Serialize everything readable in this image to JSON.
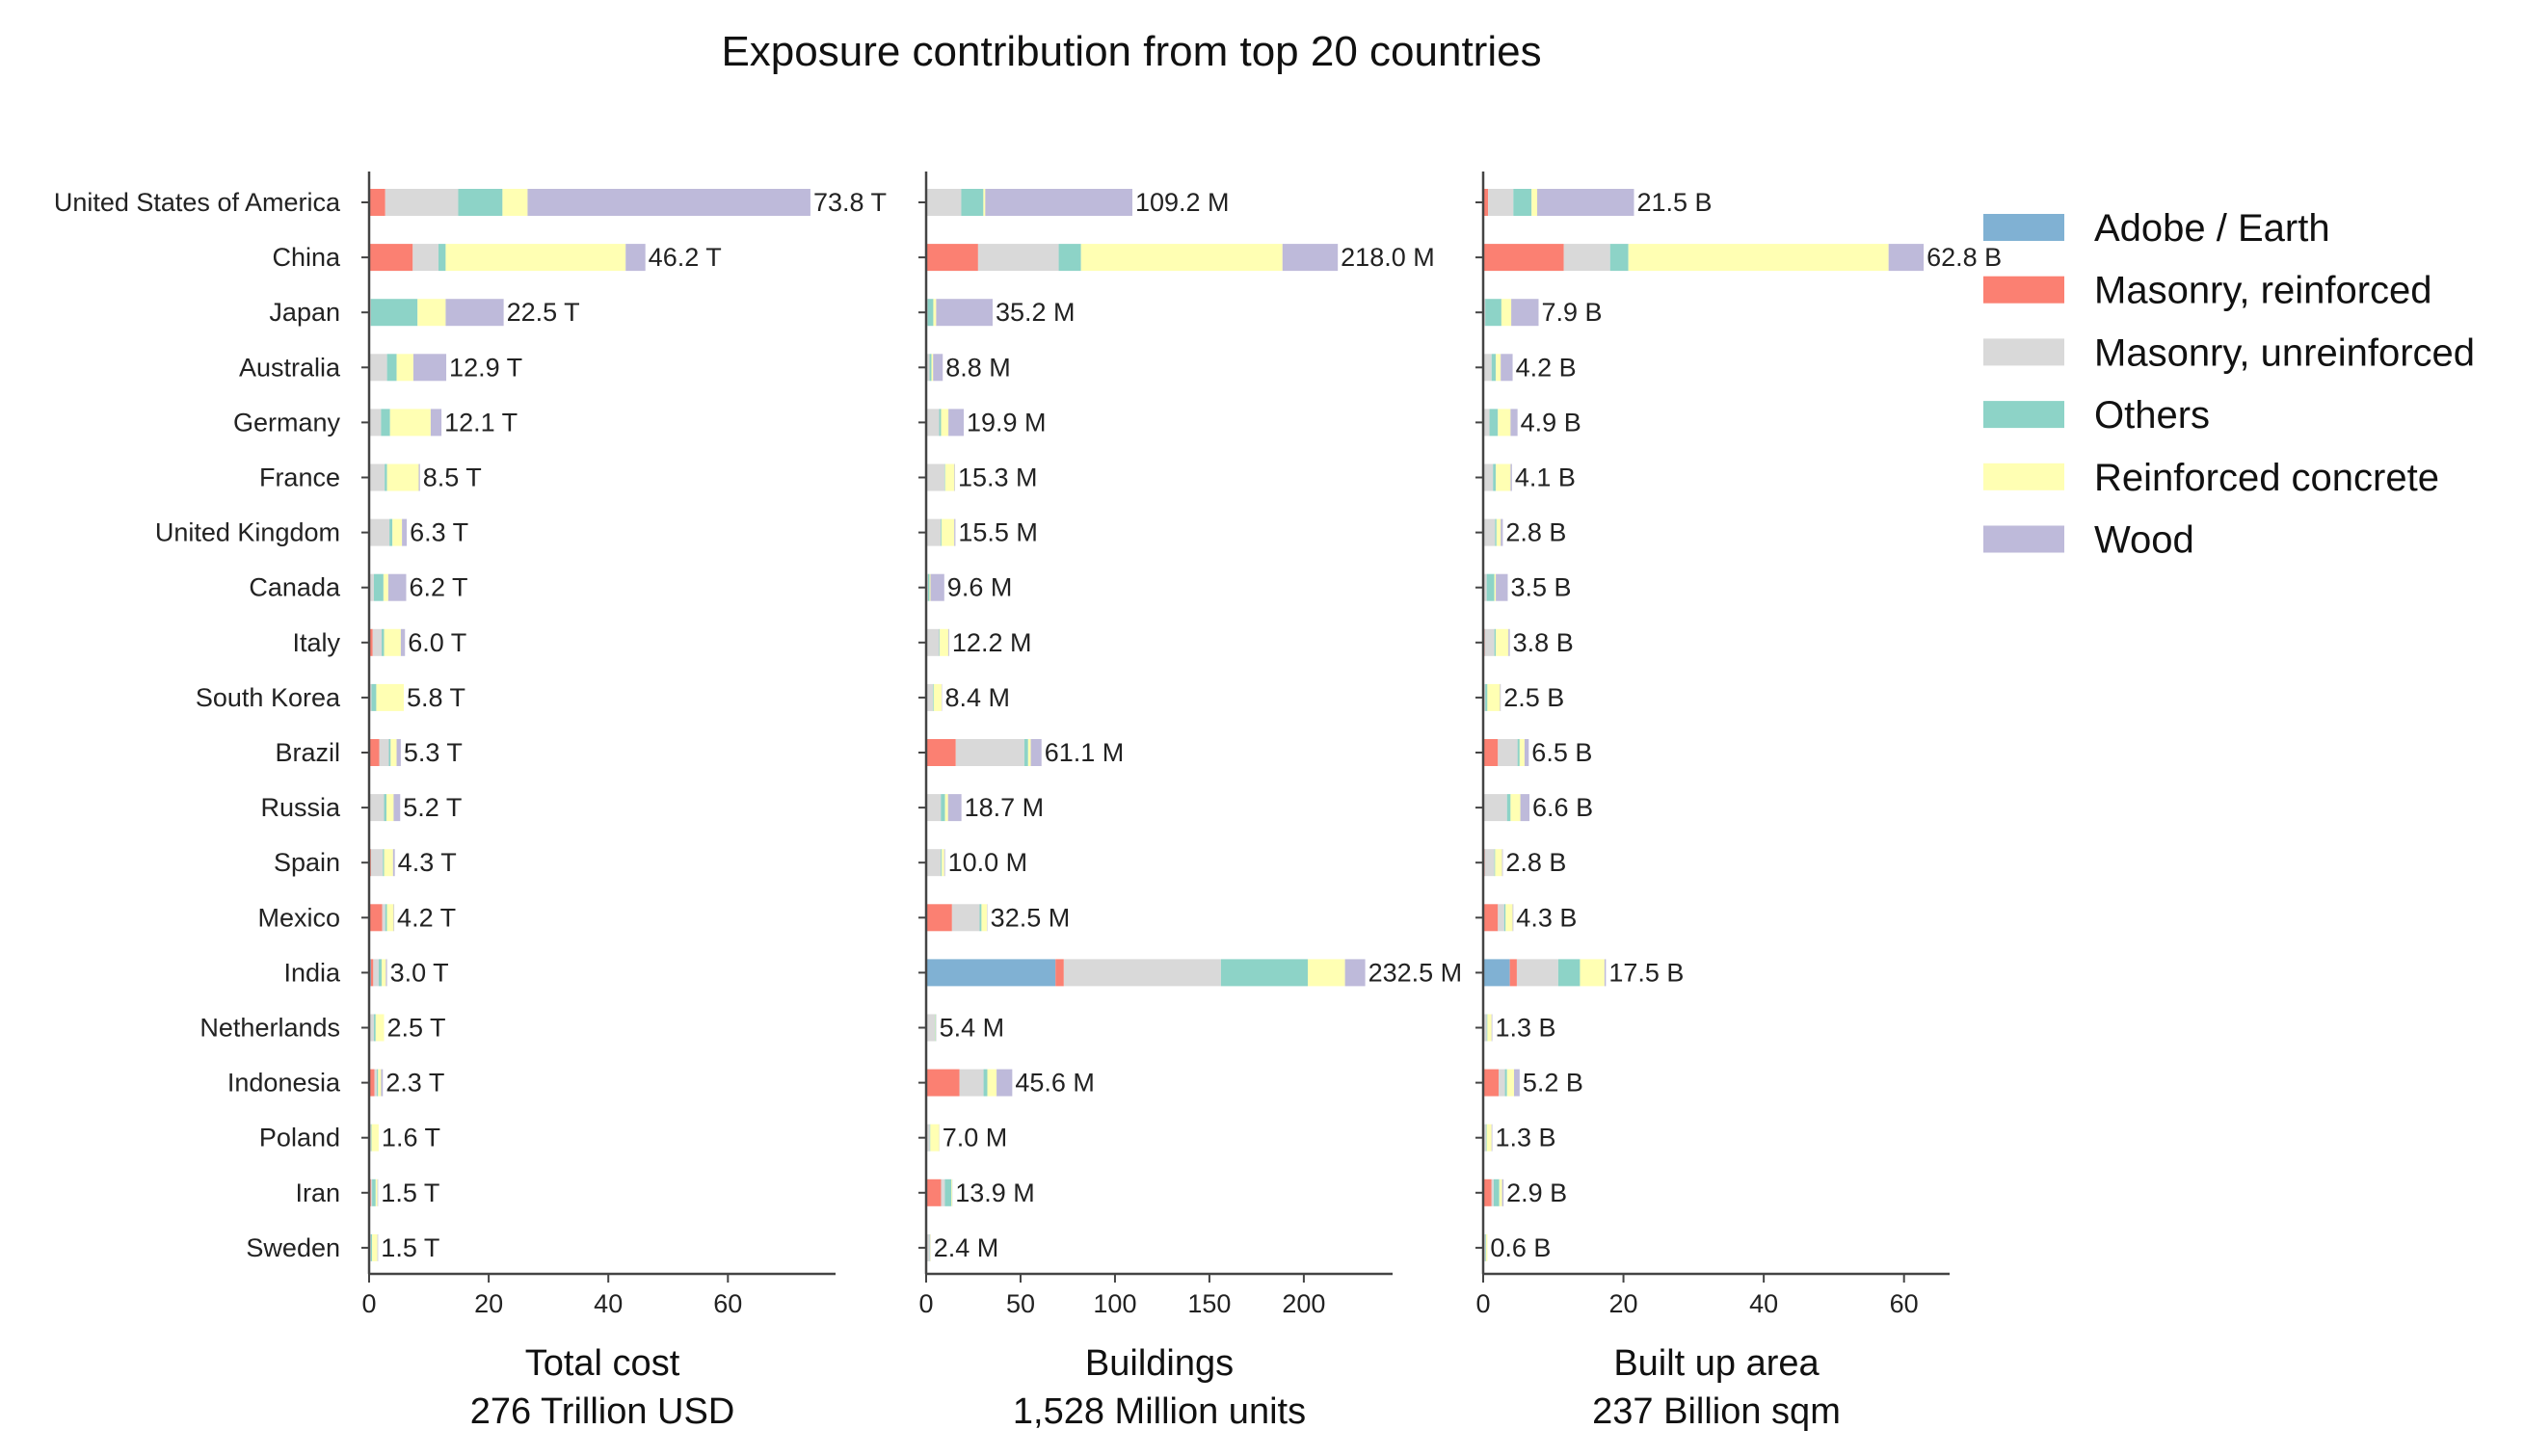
{
  "chart_data": {
    "type": "bar",
    "title": "Exposure contribution from top 20 countries",
    "categories": [
      "United States of America",
      "China",
      "Japan",
      "Australia",
      "Germany",
      "France",
      "United Kingdom",
      "Canada",
      "Italy",
      "South Korea",
      "Brazil",
      "Russia",
      "Spain",
      "Mexico",
      "India",
      "Netherlands",
      "Indonesia",
      "Poland",
      "Iran",
      "Sweden"
    ],
    "legend": {
      "placement": "top-right",
      "entries": [
        {
          "name": "Adobe / Earth",
          "color": "#80b1d3"
        },
        {
          "name": "Masonry, reinforced",
          "color": "#fb8072"
        },
        {
          "name": "Masonry, unreinforced",
          "color": "#d9d9d9"
        },
        {
          "name": "Others",
          "color": "#8dd3c7"
        },
        {
          "name": "Reinforced concrete",
          "color": "#ffffb3"
        },
        {
          "name": "Wood",
          "color": "#bebada"
        }
      ]
    },
    "panels": [
      {
        "xlabel": "Total cost",
        "xlabel2": "276 Trillion USD",
        "xlim": [
          0,
          78
        ],
        "xticks": [
          0,
          20,
          40,
          60
        ],
        "totals_labels": [
          "73.8 T",
          "46.2 T",
          "22.5 T",
          "12.9 T",
          "12.1 T",
          "8.5 T",
          "6.3 T",
          "6.2 T",
          "6.0 T",
          "5.8 T",
          "5.3 T",
          "5.2 T",
          "4.3 T",
          "4.2 T",
          "3.0 T",
          "2.5 T",
          "2.3 T",
          "1.6 T",
          "1.5 T",
          "1.5 T"
        ],
        "series": [
          {
            "name": "Adobe / Earth",
            "values": [
              0,
              0,
              0,
              0,
              0,
              0,
              0,
              0,
              0,
              0,
              0,
              0,
              0,
              0,
              0.3,
              0,
              0,
              0,
              0,
              0
            ]
          },
          {
            "name": "Masonry, reinforced",
            "values": [
              2.7,
              7.3,
              0,
              0,
              0,
              0,
              0,
              0,
              0.6,
              0,
              1.7,
              0,
              0.3,
              2.2,
              0.4,
              0,
              0.9,
              0,
              0.3,
              0
            ]
          },
          {
            "name": "Masonry, unreinforced",
            "values": [
              12.2,
              4.3,
              0.3,
              3.0,
              2.0,
              2.6,
              3.4,
              0.8,
              1.5,
              0.4,
              1.6,
              2.5,
              2.0,
              0.5,
              0.9,
              0.8,
              0.4,
              0.3,
              0.2,
              0.3
            ]
          },
          {
            "name": "Others",
            "values": [
              7.4,
              1.2,
              7.8,
              1.6,
              1.5,
              0.4,
              0.5,
              1.6,
              0.4,
              0.8,
              0.3,
              0.4,
              0.2,
              0.3,
              0.5,
              0.3,
              0.2,
              0.1,
              0.6,
              0.2
            ]
          },
          {
            "name": "Reinforced concrete",
            "values": [
              4.2,
              30.1,
              4.7,
              2.8,
              6.8,
              5.3,
              1.6,
              0.8,
              2.8,
              4.6,
              1.0,
              1.2,
              1.5,
              1.1,
              0.7,
              1.4,
              0.5,
              1.2,
              0.3,
              0.9
            ]
          },
          {
            "name": "Wood",
            "values": [
              47.3,
              3.3,
              9.7,
              5.5,
              1.8,
              0.2,
              0.8,
              3.0,
              0.7,
              0,
              0.7,
              1.1,
              0.3,
              0.1,
              0.2,
              0,
              0.3,
              0,
              0.1,
              0.1
            ]
          }
        ]
      },
      {
        "xlabel": "Buildings",
        "xlabel2": "1,528 Million units",
        "xlim": [
          0,
          247
        ],
        "xticks": [
          0,
          50,
          100,
          150,
          200
        ],
        "totals_labels": [
          "109.2 M",
          "218.0 M",
          "35.2 M",
          "8.8 M",
          "19.9 M",
          "15.3 M",
          "15.5 M",
          "9.6 M",
          "12.2 M",
          "8.4 M",
          "61.1 M",
          "18.7 M",
          "10.0 M",
          "32.5 M",
          "232.5 M",
          "5.4 M",
          "45.6 M",
          "7.0 M",
          "13.9 M",
          "2.4 M"
        ],
        "series": [
          {
            "name": "Adobe / Earth",
            "values": [
              0,
              0,
              0,
              0,
              0,
              0,
              0,
              0,
              0,
              0,
              0,
              0,
              0,
              0,
              68.5,
              0,
              0,
              0,
              0,
              0
            ]
          },
          {
            "name": "Masonry, reinforced",
            "values": [
              0,
              27.5,
              0,
              0,
              0,
              0,
              0,
              0,
              0,
              0,
              15.7,
              0,
              0,
              13.7,
              4.4,
              0,
              17.7,
              0,
              7.9,
              0
            ]
          },
          {
            "name": "Masonry, unreinforced",
            "values": [
              18.6,
              42.7,
              0.8,
              1.8,
              6.9,
              9.8,
              7.8,
              1.0,
              6.9,
              3.6,
              36.3,
              7.8,
              7.8,
              14.6,
              83.2,
              4.6,
              12.7,
              1.9,
              2.0,
              1.9
            ]
          },
          {
            "name": "Others",
            "values": [
              11.7,
              11.8,
              3.0,
              1.0,
              1.0,
              0.3,
              0.4,
              0.8,
              0.3,
              0.4,
              2.0,
              2.2,
              0.5,
              1.0,
              46.0,
              0.3,
              2.0,
              0.3,
              3.5,
              0.2
            ]
          },
          {
            "name": "Reinforced concrete",
            "values": [
              1.0,
              106.7,
              1.5,
              0.9,
              3.9,
              4.9,
              6.7,
              0.5,
              4.6,
              4.2,
              1.4,
              1.6,
              1.3,
              3.0,
              19.7,
              0.3,
              4.9,
              4.7,
              0.4,
              0.2
            ]
          },
          {
            "name": "Wood",
            "values": [
              77.9,
              29.3,
              29.9,
              5.1,
              8.1,
              0.3,
              0.6,
              7.3,
              0.4,
              0.2,
              5.7,
              7.1,
              0.4,
              0.2,
              10.7,
              0.2,
              8.3,
              0.1,
              0.1,
              0.1
            ]
          }
        ]
      },
      {
        "xlabel": "Built up area",
        "xlabel2": "237 Billion sqm",
        "xlim": [
          0,
          66.5
        ],
        "xticks": [
          0,
          20,
          40,
          60
        ],
        "totals_labels": [
          "21.5 B",
          "62.8 B",
          "7.9 B",
          "4.2 B",
          "4.9 B",
          "4.1 B",
          "2.8 B",
          "3.5 B",
          "3.8 B",
          "2.5 B",
          "6.5 B",
          "6.6 B",
          "2.8 B",
          "4.3 B",
          "17.5 B",
          "1.3 B",
          "5.2 B",
          "1.3 B",
          "2.9 B",
          "0.6 B"
        ],
        "series": [
          {
            "name": "Adobe / Earth",
            "values": [
              0,
              0,
              0,
              0,
              0,
              0,
              0,
              0,
              0,
              0,
              0,
              0,
              0,
              0,
              3.8,
              0,
              0,
              0,
              0,
              0
            ]
          },
          {
            "name": "Masonry, reinforced",
            "values": [
              0.7,
              11.5,
              0,
              0,
              0,
              0,
              0,
              0,
              0.2,
              0,
              2.1,
              0,
              0.2,
              2.1,
              1.0,
              0,
              2.2,
              0,
              1.2,
              0
            ]
          },
          {
            "name": "Masonry, unreinforced",
            "values": [
              3.6,
              6.6,
              0.3,
              1.2,
              0.9,
              1.4,
              1.7,
              0.5,
              1.4,
              0.3,
              2.8,
              3.4,
              1.4,
              0.9,
              5.9,
              0.5,
              0.9,
              0.4,
              0.3,
              0.3
            ]
          },
          {
            "name": "Others",
            "values": [
              2.6,
              2.6,
              2.3,
              0.6,
              1.2,
              0.4,
              0.2,
              1.1,
              0.2,
              0.3,
              0.3,
              0.5,
              0.1,
              0.2,
              3.1,
              0.1,
              0.3,
              0.1,
              0.8,
              0.1
            ]
          },
          {
            "name": "Reinforced concrete",
            "values": [
              0.8,
              37.1,
              1.4,
              0.7,
              1.8,
              2.1,
              0.6,
              0.2,
              1.8,
              1.8,
              0.7,
              1.4,
              1.0,
              1.0,
              3.5,
              0.6,
              1.0,
              0.7,
              0.4,
              0.2
            ]
          },
          {
            "name": "Wood",
            "values": [
              13.8,
              5.0,
              3.9,
              1.7,
              1.0,
              0.2,
              0.3,
              1.7,
              0.2,
              0.1,
              0.6,
              1.3,
              0.1,
              0.1,
              0.2,
              0.1,
              0.8,
              0.1,
              0.2,
              0
            ]
          }
        ]
      }
    ]
  }
}
